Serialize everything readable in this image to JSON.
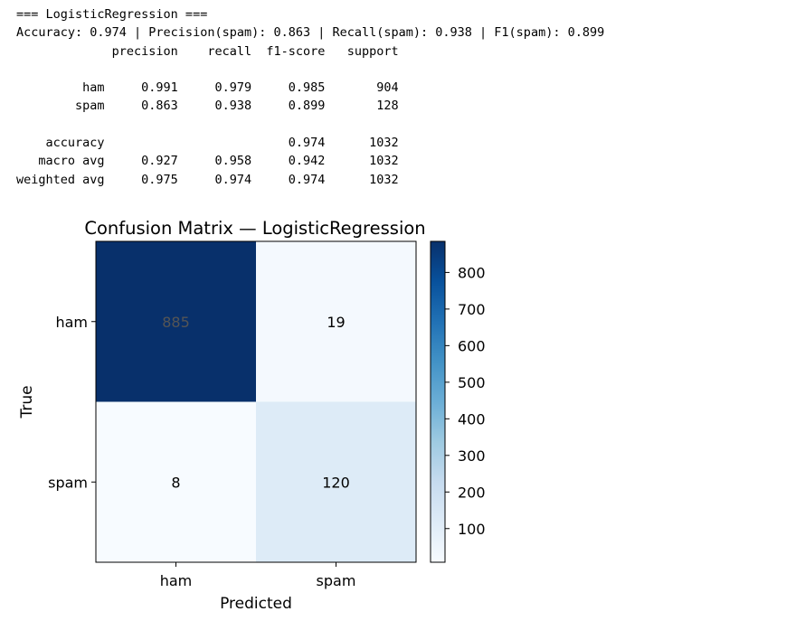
{
  "console": {
    "header": "=== LogisticRegression ===",
    "summary": "Accuracy: 0.974 | Precision(spam): 0.863 | Recall(spam): 0.938 | F1(spam): 0.899",
    "report": {
      "columns": [
        "precision",
        "recall",
        "f1-score",
        "support"
      ],
      "rows": [
        {
          "label": "ham",
          "precision": "0.991",
          "recall": "0.979",
          "f1": "0.985",
          "support": "904"
        },
        {
          "label": "spam",
          "precision": "0.863",
          "recall": "0.938",
          "f1": "0.899",
          "support": "128"
        },
        {
          "label": "accuracy",
          "precision": "",
          "recall": "",
          "f1": "0.974",
          "support": "1032"
        },
        {
          "label": "macro avg",
          "precision": "0.927",
          "recall": "0.958",
          "f1": "0.942",
          "support": "1032"
        },
        {
          "label": "weighted avg",
          "precision": "0.975",
          "recall": "0.974",
          "f1": "0.974",
          "support": "1032"
        }
      ]
    }
  },
  "chart_data": {
    "type": "heatmap",
    "title": "Confusion Matrix — LogisticRegression",
    "xlabel": "Predicted",
    "ylabel": "True",
    "x_categories": [
      "ham",
      "spam"
    ],
    "y_categories": [
      "ham",
      "spam"
    ],
    "matrix": [
      [
        885,
        19
      ],
      [
        8,
        120
      ]
    ],
    "colormap": "Blues",
    "color_range": [
      8,
      885
    ],
    "colorbar_ticks": [
      100,
      200,
      300,
      400,
      500,
      600,
      700,
      800
    ],
    "colors": {
      "dark": "#08306b",
      "light": "#f7fbff"
    }
  }
}
